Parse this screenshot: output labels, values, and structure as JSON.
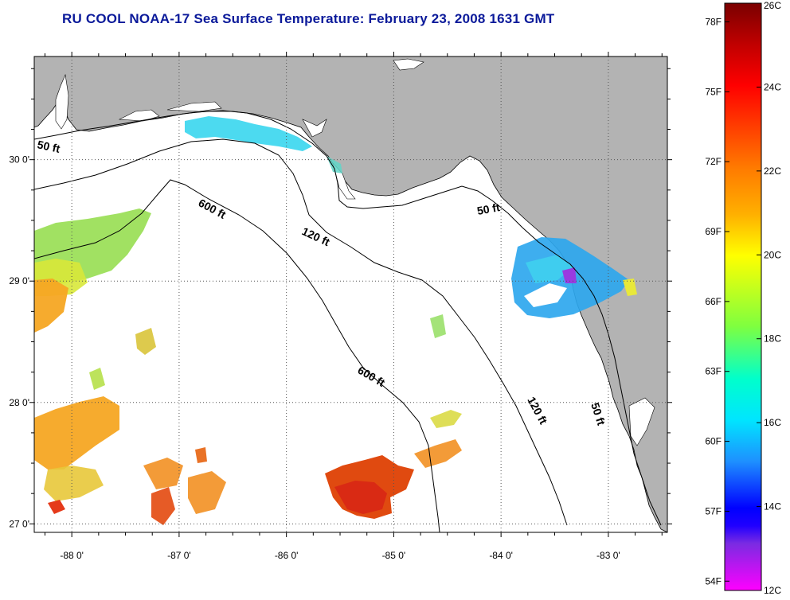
{
  "title": "RU COOL  NOAA-17  Sea Surface Temperature:  February 23, 2008 1631 GMT",
  "map": {
    "lon_range": [
      -88.35,
      -82.45
    ],
    "lat_range": [
      26.93,
      30.85
    ],
    "lon_ticks": [
      {
        "value": -88,
        "label": "-88 0'"
      },
      {
        "value": -87,
        "label": "-87 0'"
      },
      {
        "value": -86,
        "label": "-86 0'"
      },
      {
        "value": -85,
        "label": "-85 0'"
      },
      {
        "value": -84,
        "label": "-84 0'"
      },
      {
        "value": -83,
        "label": "-83 0'"
      }
    ],
    "lat_ticks": [
      {
        "value": 27,
        "label": "27 0'"
      },
      {
        "value": 28,
        "label": "28 0'"
      },
      {
        "value": 29,
        "label": "29 0'"
      },
      {
        "value": 30,
        "label": "30 0'"
      }
    ],
    "grid": "dotted",
    "land_color": "#b3b3b3",
    "ocean_color": "#ffffff",
    "contour_labels": [
      "50 ft",
      "600 ft",
      "120 ft",
      "50 ft",
      "600 ft",
      "120 ft",
      "50 ft"
    ]
  },
  "colorbar": {
    "min_c": 12,
    "max_c": 26,
    "celsius_labels": [
      "26C",
      "24C",
      "22C",
      "20C",
      "18C",
      "16C",
      "14C",
      "12C"
    ],
    "fahrenheit_labels": [
      "78F",
      "75F",
      "72F",
      "69F",
      "66F",
      "63F",
      "60F",
      "57F",
      "54F"
    ],
    "colors_top_to_bottom": [
      "#8b0000",
      "#ff0000",
      "#ff8c00",
      "#ffff00",
      "#7fff00",
      "#00ffff",
      "#1e90ff",
      "#0000ff",
      "#8a2be2",
      "#ff00ff"
    ]
  }
}
